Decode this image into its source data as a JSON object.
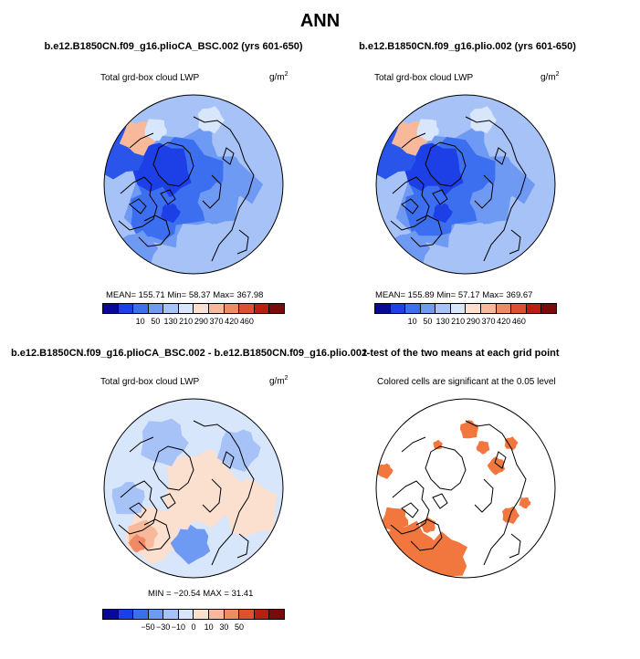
{
  "title": "ANN",
  "panels": [
    {
      "title": "b.e12.B1850CN.f09_g16.plioCA_BSC.002 (yrs 601-650)",
      "subtitle": "Total grd-box cloud LWP",
      "unit_base": "g/m",
      "unit_exp": "2",
      "stats": "MEAN=  155.71   Min=   58.37   Max=  367.98",
      "colorbar_labels": [
        "10",
        "50",
        "130",
        "210",
        "290",
        "370",
        "420",
        "460"
      ]
    },
    {
      "title": "b.e12.B1850CN.f09_g16.plio.002 (yrs 601-650)",
      "subtitle": "Total grd-box cloud LWP",
      "unit_base": "g/m",
      "unit_exp": "2",
      "stats": "MEAN=  155.89   Min=   57.17   Max=  369.67",
      "colorbar_labels": [
        "10",
        "50",
        "130",
        "210",
        "290",
        "370",
        "420",
        "460"
      ]
    },
    {
      "title": "b.e12.B1850CN.f09_g16.plioCA_BSC.002 - b.e12.B1850CN.f09_g16.plio.002",
      "subtitle": "Total grd-box cloud LWP",
      "unit_base": "g/m",
      "unit_exp": "2",
      "stats": "MIN = −20.54  MAX =  31.41",
      "colorbar_labels": [
        "−50",
        "−30",
        "−10",
        "0",
        "10",
        "30",
        "50"
      ]
    },
    {
      "title": "t-test of the two means at each grid point",
      "subtitle": "Colored cells are significant at the 0.05 level"
    }
  ],
  "colors": {
    "scale": [
      "#08089a",
      "#1c3fe6",
      "#3b6ff0",
      "#6f9af3",
      "#a6c2f7",
      "#d8e6fb",
      "#fbe0d0",
      "#f8b89a",
      "#f08a64",
      "#e0502e",
      "#b81e12",
      "#7c0a08"
    ],
    "significant": "#f2773e",
    "land_outline": "#000000"
  }
}
